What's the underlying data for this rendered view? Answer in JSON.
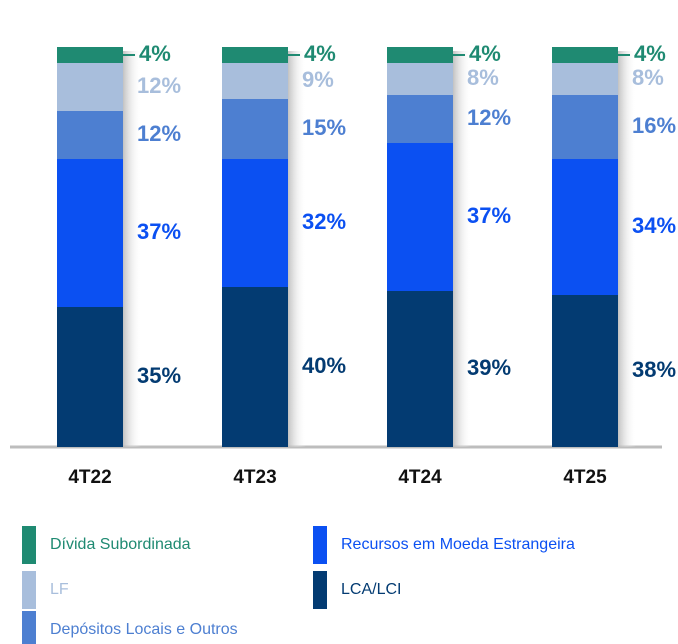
{
  "chart_data": {
    "type": "stacked_bar",
    "categories": [
      "4T22",
      "4T23",
      "4T24",
      "4T25"
    ],
    "series": [
      {
        "name": "LCA/LCI",
        "color": "#033b72",
        "values": [
          35,
          40,
          39,
          38
        ],
        "value_labels": [
          "35%",
          "40%",
          "39%",
          "38%"
        ]
      },
      {
        "name": "Recursos em Moeda Estrangeira",
        "color": "#0b50f2",
        "values": [
          37,
          32,
          37,
          34
        ],
        "value_labels": [
          "37%",
          "32%",
          "37%",
          "34%"
        ]
      },
      {
        "name": "Depósitos Locais e Outros",
        "color": "#4d7fd1",
        "values": [
          12,
          15,
          12,
          16
        ],
        "value_labels": [
          "12%",
          "15%",
          "12%",
          "16%"
        ]
      },
      {
        "name": "LF",
        "color": "#a8bedc",
        "values": [
          12,
          9,
          8,
          8
        ],
        "value_labels": [
          "12%",
          "9%",
          "8%",
          "8%"
        ]
      },
      {
        "name": "Dívida Subordinada",
        "color": "#1f8a72",
        "values": [
          4,
          4,
          4,
          4
        ],
        "value_labels": [
          "4%",
          "4%",
          "4%",
          "4%"
        ]
      }
    ]
  }
}
